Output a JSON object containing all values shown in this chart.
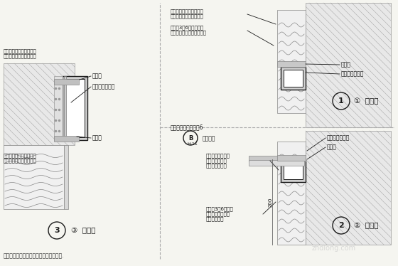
{
  "bg_color": "#f5f5f0",
  "line_color": "#1a1a1a",
  "light_gray": "#cccccc",
  "dark_gray": "#555555",
  "hatch_color": "#333333",
  "title": "",
  "note": "注：外窗台排水坡顶应低于窗框的泄水孔.",
  "labels": {
    "top_left_1": "贴岩棉板（将翻包的玻纤",
    "top_left_2": "网格布用抹面胶浆粘贴）",
    "top_left_3": "墙面抹3～6厚抹面胶浆",
    "top_left_4": "（中间压一层玻纤网格布）",
    "mid_left_seal": "密封膏",
    "mid_left_foam": "发泡聚氨酯灌缝",
    "bot_left_1": "贴岩棉板（将翻包的玻纤",
    "bot_left_2": "网格布用抹面胶浆粘贴）",
    "bot_left_seal": "密封膏",
    "label3": "③  窗侧口",
    "top_right_seal": "密封膏",
    "top_right_foam": "发泡聚氨酯灌缝",
    "label1": "①  窗上口",
    "mid_right_label": "窗台抹面胶浆厚度＞6",
    "mid_right_b": "B\nH-11",
    "mid_right_plastic": "塑料滴水",
    "bot_right_r1": "贴岩棉板（将翻包",
    "bot_right_r2": "的玻纤网格布用",
    "bot_right_r3": "抹面胶浆粘贴）",
    "bot_right_foam": "发泡聚氨酯灌缝",
    "bot_right_seal": "密封膏",
    "bot_right_wall1": "墙面抹3～6厚抹面",
    "bot_right_wall2": "胶浆（中间压一层",
    "bot_right_wall3": "玻纤网格布）",
    "label2": "②  窗下口",
    "dim_200": "200"
  },
  "watermark": "zhdlong.com"
}
